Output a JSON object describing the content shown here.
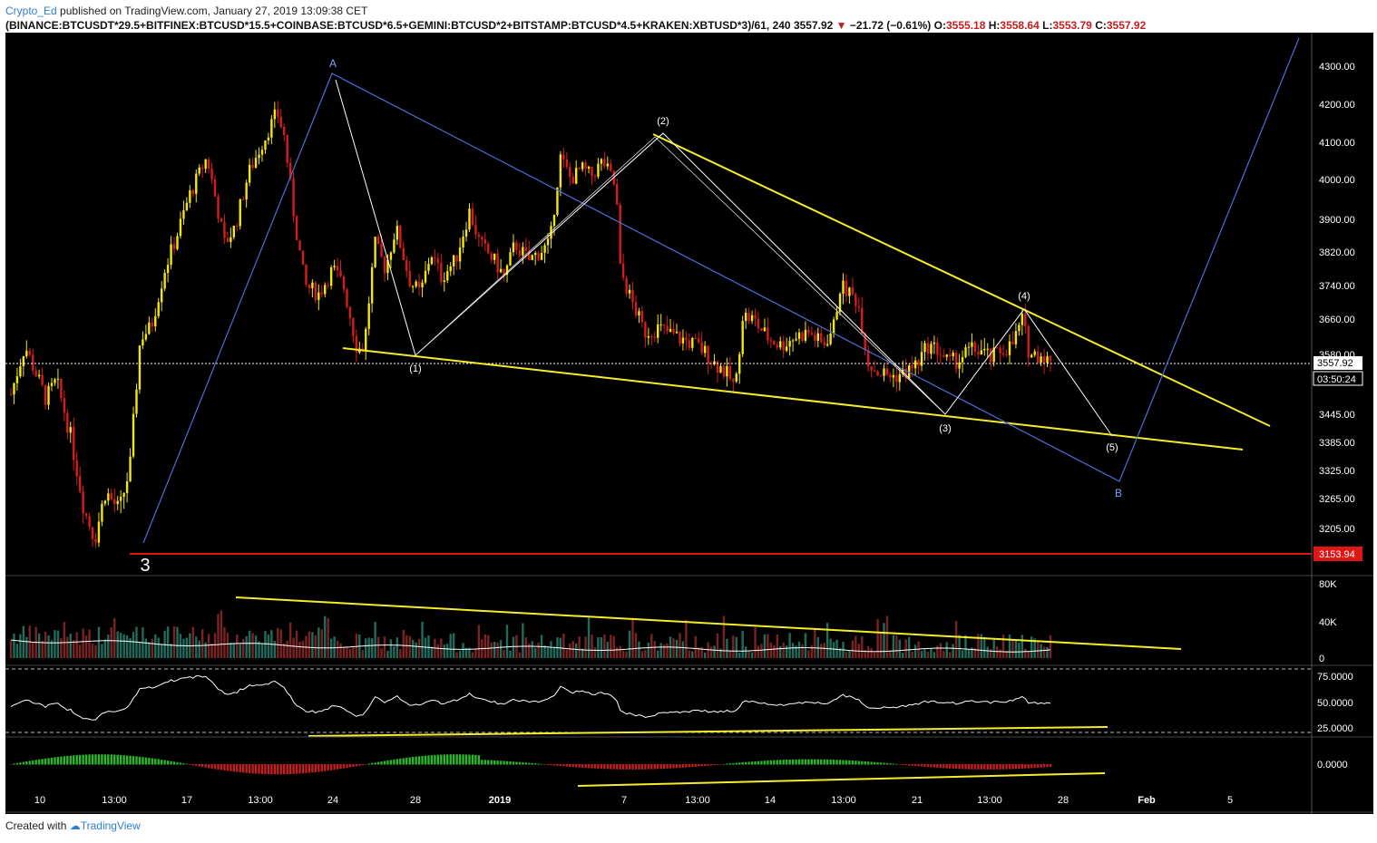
{
  "header": {
    "author": "Crypto_Ed",
    "published": "published on TradingView.com, January 27, 2019 13:09:38 CET",
    "symbol": "(BINANCE:BTCUSDT*29.5+BITFINEX:BTCUSD*15.5+COINBASE:BTCUSD*6.5+GEMINI:BTCUSD*2+BITSTAMP:BTCUSD*4.5+KRAKEN:XBTUSD*3)/61, 240",
    "last": "3557.92",
    "change": "−21.72 (−0.61%)",
    "o_label": "O:",
    "o": "3555.18",
    "h_label": "H:",
    "h": "3558.64",
    "l_label": "L:",
    "l": "3553.79",
    "c_label": "C:",
    "c": "3557.92"
  },
  "footer": {
    "created": "Created with",
    "brand": "TradingView"
  },
  "colors": {
    "up": "#f2e60c",
    "down": "#d81c1c",
    "trend": "#f5ec2a",
    "wave": "#4a6fd6",
    "volUp": "#1f6b5c",
    "volDown": "#7a2323",
    "support": "#e01515"
  },
  "chart_data": {
    "type": "candlestick",
    "price_axis": {
      "ticks": [
        "4300.00",
        "4200.00",
        "4100.00",
        "4000.00",
        "3900.00",
        "3820.00",
        "3740.00",
        "3660.00",
        "3580.00",
        "3445.00",
        "3385.00",
        "3325.00",
        "3265.00",
        "3205.00"
      ],
      "tick_values": [
        4300,
        4200,
        4100,
        4000,
        3900,
        3820,
        3740,
        3660,
        3580,
        3445,
        3385,
        3325,
        3265,
        3205
      ],
      "last_price": "3557.92",
      "countdown": "03:50:24",
      "support_label": "3153.94",
      "support": 3153.94
    },
    "time_axis": [
      "10",
      "13:00",
      "17",
      "13:00",
      "24",
      "28",
      "2019",
      "7",
      "13:00",
      "14",
      "13:00",
      "21",
      "13:00",
      "28",
      "Feb",
      "5"
    ],
    "wave_labels": {
      "A": "A",
      "B": "B",
      "w1": "(1)",
      "w2": "(2)",
      "w3": "(3)",
      "w4": "(4)",
      "w5": "(5)",
      "w3big": "3"
    },
    "wave_points": {
      "A": [
        "Dec 24",
        4270
      ],
      "w1": [
        "Dec 28",
        3580
      ],
      "w2": [
        "Jan 9",
        4120
      ],
      "w3": [
        "Jan 23",
        3445
      ],
      "w4": [
        "Jan 25",
        3680
      ],
      "w5": [
        "Jan 31",
        3400
      ],
      "B": [
        "Feb 1",
        3310
      ]
    },
    "volume": {
      "ticks": [
        "80K",
        "40K",
        "0"
      ],
      "values": [
        0,
        40000,
        80000
      ]
    },
    "rsi": {
      "ticks": [
        "75.0000",
        "50.0000",
        "25.0000"
      ],
      "values": [
        75,
        50,
        25
      ]
    },
    "macd": {
      "ticks": [
        "0.0000"
      ],
      "values": [
        0
      ]
    }
  }
}
